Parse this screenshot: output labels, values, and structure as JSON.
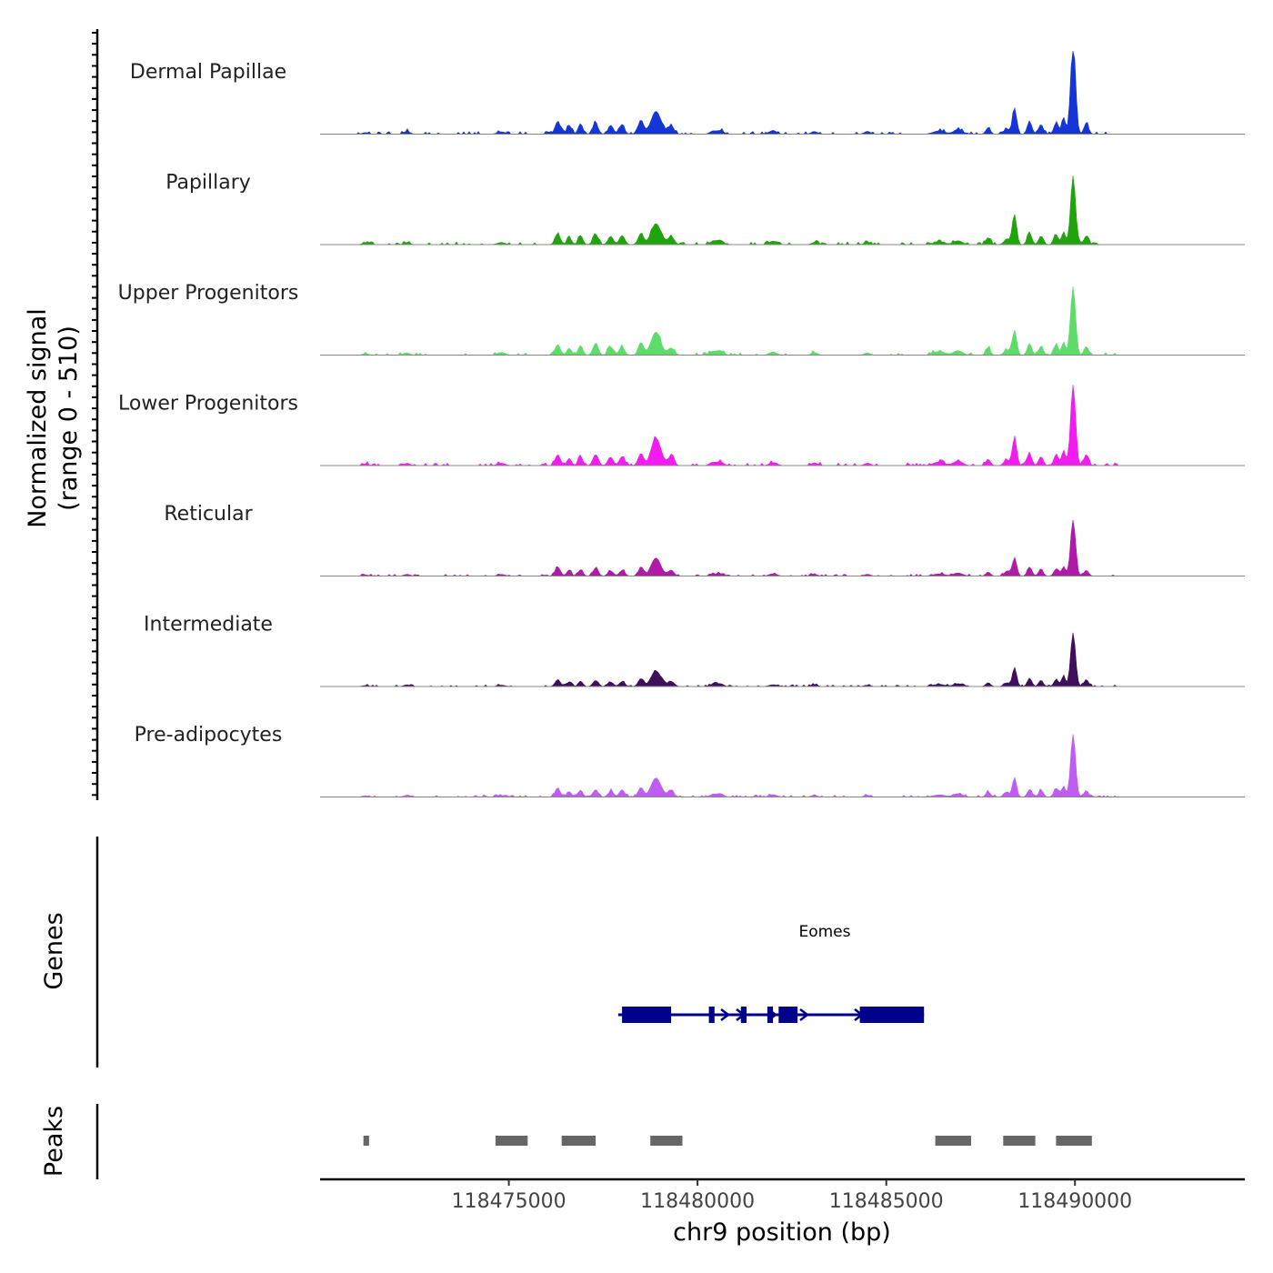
{
  "chart_data": {
    "type": "area",
    "signal_axis_label": [
      "Normalized signal",
      "(range 0 - 510)"
    ],
    "signal_range": [
      0,
      510
    ],
    "x_axis": {
      "label": "chr9 position (bp)",
      "domain": [
        118470000,
        118494500
      ],
      "ticks": [
        118475000,
        118480000,
        118485000,
        118490000
      ],
      "tick_labels": [
        "118475000",
        "118480000",
        "118485000",
        "118490000"
      ]
    },
    "tracks": [
      {
        "name": "Dermal Papillae",
        "color": "#1535d6",
        "scale": 0.98
      },
      {
        "name": "Papillary",
        "color": "#20a30c",
        "scale": 0.93
      },
      {
        "name": "Upper Progenitors",
        "color": "#5edc6a",
        "scale": 0.96
      },
      {
        "name": "Lower Progenitors",
        "color": "#f21cf0",
        "scale": 1.0
      },
      {
        "name": "Reticular",
        "color": "#b01aa8",
        "scale": 0.67
      },
      {
        "name": "Intermediate",
        "color": "#3d0f5c",
        "scale": 0.62
      },
      {
        "name": "Pre-adipocytes",
        "color": "#bf5cf2",
        "scale": 0.72
      }
    ],
    "signal_peaks": [
      {
        "pos": 118471200,
        "h": 0.02,
        "w": 80
      },
      {
        "pos": 118472300,
        "h": 0.03,
        "w": 80
      },
      {
        "pos": 118474800,
        "h": 0.03,
        "w": 100
      },
      {
        "pos": 118476300,
        "h": 0.14,
        "w": 70
      },
      {
        "pos": 118476600,
        "h": 0.1,
        "w": 60
      },
      {
        "pos": 118476900,
        "h": 0.12,
        "w": 60
      },
      {
        "pos": 118477300,
        "h": 0.13,
        "w": 70
      },
      {
        "pos": 118477700,
        "h": 0.1,
        "w": 70
      },
      {
        "pos": 118478000,
        "h": 0.11,
        "w": 70
      },
      {
        "pos": 118478500,
        "h": 0.16,
        "w": 70
      },
      {
        "pos": 118478900,
        "h": 0.3,
        "w": 130
      },
      {
        "pos": 118479300,
        "h": 0.1,
        "w": 80
      },
      {
        "pos": 118480400,
        "h": 0.04,
        "w": 80
      },
      {
        "pos": 118480600,
        "h": 0.05,
        "w": 90
      },
      {
        "pos": 118482000,
        "h": 0.04,
        "w": 100
      },
      {
        "pos": 118483100,
        "h": 0.03,
        "w": 80
      },
      {
        "pos": 118484500,
        "h": 0.03,
        "w": 80
      },
      {
        "pos": 118486400,
        "h": 0.04,
        "w": 150
      },
      {
        "pos": 118486900,
        "h": 0.05,
        "w": 120
      },
      {
        "pos": 118487700,
        "h": 0.08,
        "w": 60
      },
      {
        "pos": 118488200,
        "h": 0.07,
        "w": 80
      },
      {
        "pos": 118488400,
        "h": 0.36,
        "w": 55
      },
      {
        "pos": 118488800,
        "h": 0.15,
        "w": 60
      },
      {
        "pos": 118489100,
        "h": 0.12,
        "w": 60
      },
      {
        "pos": 118489500,
        "h": 0.14,
        "w": 60
      },
      {
        "pos": 118489700,
        "h": 0.18,
        "w": 50
      },
      {
        "pos": 118489950,
        "h": 1.0,
        "w": 65
      },
      {
        "pos": 118490300,
        "h": 0.12,
        "w": 60
      }
    ],
    "gene": {
      "name": "Eomes",
      "start": 118477900,
      "end": 118486000,
      "strand": "+",
      "exons": [
        [
          118478000,
          118479300
        ],
        [
          118480300,
          118480450
        ],
        [
          118481150,
          118481300
        ],
        [
          118481850,
          118482000
        ],
        [
          118482150,
          118482650
        ],
        [
          118484300,
          118486000
        ]
      ]
    },
    "peaks": [
      [
        118471150,
        118471300
      ],
      [
        118474650,
        118475500
      ],
      [
        118476400,
        118477300
      ],
      [
        118478750,
        118479600
      ],
      [
        118486300,
        118487250
      ],
      [
        118488100,
        118488950
      ],
      [
        118489500,
        118490450
      ]
    ],
    "panel_labels": {
      "genes": "Genes",
      "peaks": "Peaks"
    }
  }
}
